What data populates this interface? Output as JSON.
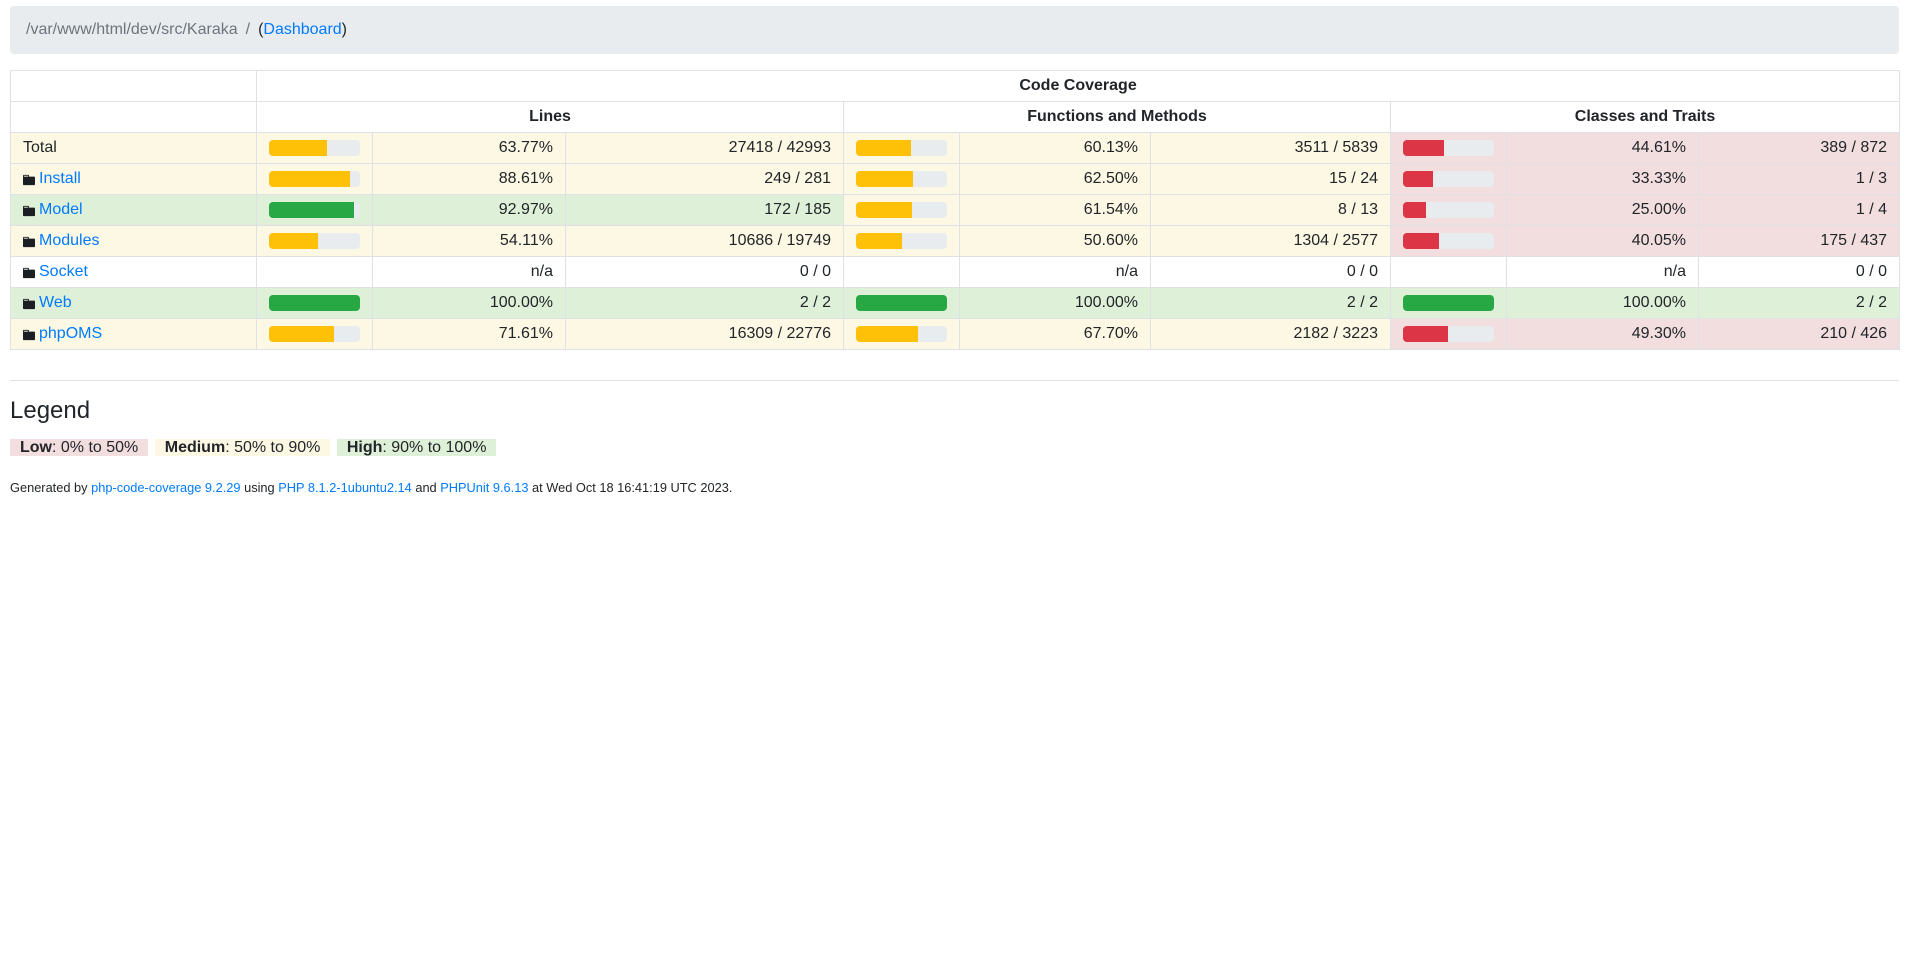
{
  "breadcrumb": {
    "path": "/var/www/html/dev/src/Karaka",
    "separator": "/",
    "dashboard_prefix": "(",
    "dashboard_link": "Dashboard",
    "dashboard_suffix": ")"
  },
  "table": {
    "title": "Code Coverage",
    "group_headers": [
      "Lines",
      "Functions and Methods",
      "Classes and Traits"
    ],
    "rows": [
      {
        "name": "Total",
        "type": "total",
        "level": "warning",
        "lines": {
          "pct": "63.77%",
          "pct_num": 63.77,
          "ratio": "27418 / 42993",
          "level": "warning"
        },
        "functions": {
          "pct": "60.13%",
          "pct_num": 60.13,
          "ratio": "3511 / 5839",
          "level": "warning"
        },
        "classes": {
          "pct": "44.61%",
          "pct_num": 44.61,
          "ratio": "389 / 872",
          "level": "danger"
        }
      },
      {
        "name": "Install",
        "type": "directory",
        "level": "warning",
        "lines": {
          "pct": "88.61%",
          "pct_num": 88.61,
          "ratio": "249 / 281",
          "level": "warning"
        },
        "functions": {
          "pct": "62.50%",
          "pct_num": 62.5,
          "ratio": "15 / 24",
          "level": "warning"
        },
        "classes": {
          "pct": "33.33%",
          "pct_num": 33.33,
          "ratio": "1 / 3",
          "level": "danger"
        }
      },
      {
        "name": "Model",
        "type": "directory",
        "level": "success",
        "lines": {
          "pct": "92.97%",
          "pct_num": 92.97,
          "ratio": "172 / 185",
          "level": "success"
        },
        "functions": {
          "pct": "61.54%",
          "pct_num": 61.54,
          "ratio": "8 / 13",
          "level": "warning"
        },
        "classes": {
          "pct": "25.00%",
          "pct_num": 25.0,
          "ratio": "1 / 4",
          "level": "danger"
        }
      },
      {
        "name": "Modules",
        "type": "directory",
        "level": "warning",
        "lines": {
          "pct": "54.11%",
          "pct_num": 54.11,
          "ratio": "10686 / 19749",
          "level": "warning"
        },
        "functions": {
          "pct": "50.60%",
          "pct_num": 50.6,
          "ratio": "1304 / 2577",
          "level": "warning"
        },
        "classes": {
          "pct": "40.05%",
          "pct_num": 40.05,
          "ratio": "175 / 437",
          "level": "danger"
        }
      },
      {
        "name": "Socket",
        "type": "directory",
        "level": "none",
        "lines": {
          "pct": "n/a",
          "pct_num": null,
          "ratio": "0 / 0",
          "level": "none"
        },
        "functions": {
          "pct": "n/a",
          "pct_num": null,
          "ratio": "0 / 0",
          "level": "none"
        },
        "classes": {
          "pct": "n/a",
          "pct_num": null,
          "ratio": "0 / 0",
          "level": "none"
        }
      },
      {
        "name": "Web",
        "type": "directory",
        "level": "success",
        "lines": {
          "pct": "100.00%",
          "pct_num": 100.0,
          "ratio": "2 / 2",
          "level": "success"
        },
        "functions": {
          "pct": "100.00%",
          "pct_num": 100.0,
          "ratio": "2 / 2",
          "level": "success"
        },
        "classes": {
          "pct": "100.00%",
          "pct_num": 100.0,
          "ratio": "2 / 2",
          "level": "success"
        }
      },
      {
        "name": "phpOMS",
        "type": "directory",
        "level": "warning",
        "lines": {
          "pct": "71.61%",
          "pct_num": 71.61,
          "ratio": "16309 / 22776",
          "level": "warning"
        },
        "functions": {
          "pct": "67.70%",
          "pct_num": 67.7,
          "ratio": "2182 / 3223",
          "level": "warning"
        },
        "classes": {
          "pct": "49.30%",
          "pct_num": 49.3,
          "ratio": "210 / 426",
          "level": "danger"
        }
      }
    ]
  },
  "legend": {
    "heading": "Legend",
    "items": [
      {
        "label": "Low",
        "range": ": 0% to 50%",
        "level": "danger"
      },
      {
        "label": "Medium",
        "range": ": 50% to 90%",
        "level": "warning"
      },
      {
        "label": "High",
        "range": ": 90% to 100%",
        "level": "success"
      }
    ]
  },
  "footer": {
    "prefix": "Generated by ",
    "generator_link": "php-code-coverage 9.2.29",
    "using": " using ",
    "php_link": "PHP 8.1.2-1ubuntu2.14",
    "and": " and ",
    "phpunit_link": "PHPUnit 9.6.13",
    "suffix": " at Wed Oct 18 16:41:19 UTC 2023."
  },
  "colors": {
    "warning_row_bg": "#fcf8e3",
    "success_row_bg": "#dff0d8",
    "danger_row_bg": "#f2dede",
    "bar_warning": "#ffc107",
    "bar_success": "#28a745",
    "bar_danger": "#dc3545",
    "bar_track": "#e9ecef",
    "breadcrumb_bg": "#e9ecef",
    "link": "#007bff",
    "border": "#dee2e6"
  }
}
